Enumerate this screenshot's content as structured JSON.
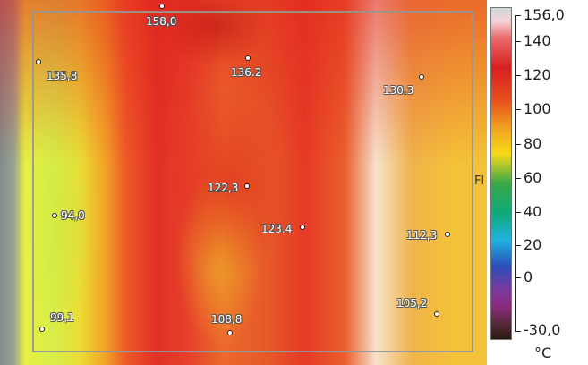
{
  "thermal_image": {
    "probes": [
      {
        "id": "p1",
        "value": "158,0"
      },
      {
        "id": "p2",
        "value": "135,8"
      },
      {
        "id": "p3",
        "value": "136.2"
      },
      {
        "id": "p4",
        "value": "130.3"
      },
      {
        "id": "p5",
        "value": "122,3"
      },
      {
        "id": "p6",
        "value": "94,0"
      },
      {
        "id": "p7",
        "value": "123.4"
      },
      {
        "id": "p8",
        "value": "112,3"
      },
      {
        "id": "p9",
        "value": "105,2"
      },
      {
        "id": "p10",
        "value": "99,1"
      },
      {
        "id": "p11",
        "value": "108,8"
      }
    ],
    "fl_label": "Fl"
  },
  "colorbar": {
    "ticks": [
      "156,0",
      "140",
      "120",
      "100",
      "80",
      "60",
      "40",
      "20",
      "0",
      "-30,0"
    ],
    "unit": "°C"
  }
}
